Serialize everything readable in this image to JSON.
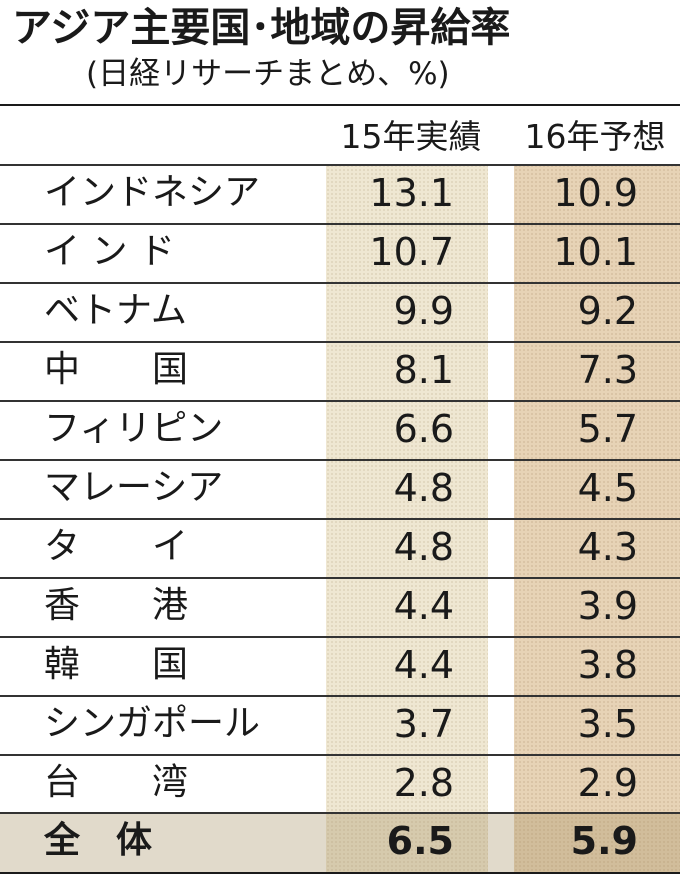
{
  "title": "アジア主要国･地域の昇給率",
  "subtitle": "(日経リサーチまとめ、%)",
  "columns": [
    "15年実績",
    "16年予想"
  ],
  "chart_data": {
    "type": "table",
    "title": "アジア主要国･地域の昇給率",
    "subtitle": "(日経リサーチまとめ、%)",
    "columns": [
      "15年実績",
      "16年予想"
    ],
    "rows": [
      {
        "name": "インドネシア",
        "values": [
          "13.1",
          "10.9"
        ]
      },
      {
        "name": "イ ン ド",
        "values": [
          "10.7",
          "10.1"
        ]
      },
      {
        "name": "ベトナム",
        "values": [
          "9.9",
          "9.2"
        ]
      },
      {
        "name": "中　　国",
        "values": [
          "8.1",
          "7.3"
        ]
      },
      {
        "name": "フィリピン",
        "values": [
          "6.6",
          "5.7"
        ]
      },
      {
        "name": "マレーシア",
        "values": [
          "4.8",
          "4.5"
        ]
      },
      {
        "name": "タ　　イ",
        "values": [
          "4.8",
          "4.3"
        ]
      },
      {
        "name": "香　　港",
        "values": [
          "4.4",
          "3.9"
        ]
      },
      {
        "name": "韓　　国",
        "values": [
          "4.4",
          "3.8"
        ]
      },
      {
        "name": "シンガポール",
        "values": [
          "3.7",
          "3.5"
        ]
      },
      {
        "name": "台　　湾",
        "values": [
          "2.8",
          "2.9"
        ]
      }
    ],
    "total": {
      "name": "全　体",
      "values": [
        "6.5",
        "5.9"
      ]
    }
  }
}
